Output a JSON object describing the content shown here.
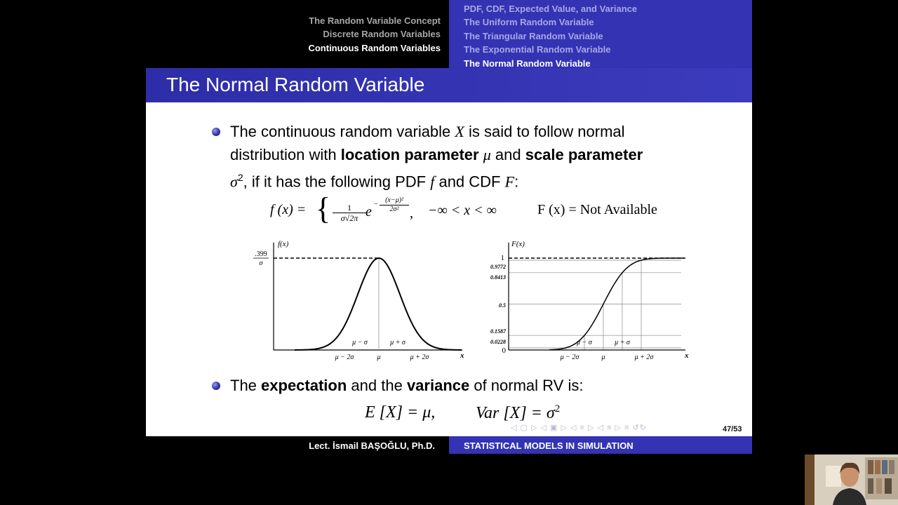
{
  "header": {
    "sections": [
      {
        "label": "The Random Variable Concept",
        "current": false
      },
      {
        "label": "Discrete Random Variables",
        "current": false
      },
      {
        "label": "Continuous Random Variables",
        "current": true
      }
    ],
    "subsections": [
      {
        "label": "PDF, CDF, Expected Value, and Variance",
        "current": false
      },
      {
        "label": "The Uniform Random Variable",
        "current": false
      },
      {
        "label": "The Triangular Random Variable",
        "current": false
      },
      {
        "label": "The Exponential Random Variable",
        "current": false
      },
      {
        "label": "The Normal Random Variable",
        "current": true
      }
    ]
  },
  "title": "The Normal Random Variable",
  "bullet1": {
    "l1a": "The continuous random variable ",
    "var_x": "X",
    "l1b": " is said to follow normal",
    "l2a": "distribution with ",
    "bold1": "location parameter",
    "mu": "μ",
    "l2b": " and ",
    "bold2": "scale parameter",
    "sigma2": "σ",
    "sup2": "2",
    "l3a": ", if it has the following PDF ",
    "var_f": "f",
    "l3b": " and CDF ",
    "var_F": "F",
    "l3c": ":"
  },
  "formula": {
    "pdf_lhs": "f (x) =",
    "frac_num": "1",
    "frac_den": "σ√2π",
    "e": "e",
    "exp_num": "(x−μ)²",
    "exp_den": "2σ²",
    "exp_minus": "−",
    "comma": ",",
    "domain": "−∞ < x < ∞",
    "cdf": "F (x) = Not Available"
  },
  "pdf_plot": {
    "ylabel": "f(x)",
    "ymax_num": ".399",
    "ymax_den": "σ",
    "xlabel": "x",
    "ticks_below": [
      "μ − 2σ",
      "μ",
      "μ + 2σ"
    ],
    "ticks_above": [
      "μ − σ",
      "μ + σ"
    ]
  },
  "cdf_plot": {
    "ylabel": "F(x)",
    "xlabel": "x",
    "yticks": [
      "1",
      "0.9772",
      "0.8413",
      "0.5",
      "0.1587",
      "0.0228",
      "0"
    ],
    "ticks_below": [
      "μ − 2σ",
      "μ",
      "μ + 2σ"
    ],
    "ticks_above": [
      "μ − σ",
      "μ + σ"
    ]
  },
  "bullet2": {
    "a": "The ",
    "bold1": "expectation",
    "b": " and the ",
    "bold2": "variance",
    "c": " of normal RV is:"
  },
  "formula2": {
    "ex": "E [X] = μ,",
    "var": "Var [X] = σ",
    "sup": "2"
  },
  "footer": {
    "author": "Lect. İsmail BAŞOĞLU, Ph.D.",
    "course": "STATISTICAL MODELS IN SIMULATION",
    "page": "47/53"
  }
}
